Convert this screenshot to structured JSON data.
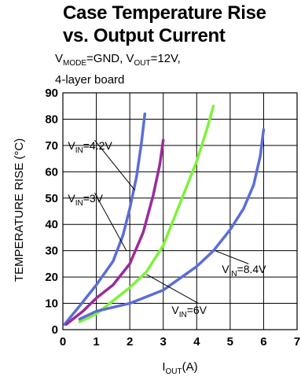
{
  "title_line1": "Case Temperature Rise",
  "title_line2": "vs. Output Current",
  "conditions": {
    "line1_a": "V",
    "line1_sub1": "MODE",
    "line1_b": "=GND, V",
    "line1_sub2": "OUT",
    "line1_c": "=12V,",
    "line2": "4-layer board"
  },
  "chart_data": {
    "type": "line",
    "xlabel_main": "I",
    "xlabel_sub": "OUT",
    "xlabel_unit": "(A)",
    "ylabel": "TEMPERATURE RISE (°C)",
    "xlim": [
      0,
      7
    ],
    "ylim": [
      0,
      90
    ],
    "xticks": [
      0,
      1,
      2,
      3,
      4,
      5,
      6,
      7
    ],
    "yticks": [
      0,
      10,
      20,
      30,
      40,
      50,
      60,
      70,
      80,
      90
    ],
    "grid": true,
    "series": [
      {
        "name": "VIN=4.2V",
        "label_main": "V",
        "label_sub": "IN",
        "label_value": "=4.2V",
        "color": "#5b6ed6",
        "points": [
          [
            0.05,
            2
          ],
          [
            0.5,
            9
          ],
          [
            1,
            17
          ],
          [
            1.5,
            26
          ],
          [
            1.8,
            36
          ],
          [
            2,
            46
          ],
          [
            2.2,
            58
          ],
          [
            2.35,
            71
          ],
          [
            2.45,
            82
          ]
        ]
      },
      {
        "name": "VIN=3V",
        "label_main": "V",
        "label_sub": "IN",
        "label_value": "=3V",
        "color": "#9b2b9b",
        "points": [
          [
            0.1,
            2
          ],
          [
            0.6,
            7
          ],
          [
            1,
            12
          ],
          [
            1.5,
            17
          ],
          [
            2,
            25
          ],
          [
            2.4,
            37
          ],
          [
            2.7,
            51
          ],
          [
            2.9,
            63
          ],
          [
            3,
            72
          ]
        ]
      },
      {
        "name": "VIN=6V",
        "label_main": "V",
        "label_sub": "IN",
        "label_value": "=6V",
        "color": "#7ef23a",
        "points": [
          [
            0.5,
            3
          ],
          [
            1,
            6
          ],
          [
            1.5,
            11
          ],
          [
            2,
            16
          ],
          [
            2.5,
            22
          ],
          [
            3,
            32
          ],
          [
            3.5,
            48
          ],
          [
            4,
            64
          ],
          [
            4.3,
            76
          ],
          [
            4.5,
            85
          ]
        ]
      },
      {
        "name": "VIN=8.4V",
        "label_main": "V",
        "label_sub": "IN",
        "label_value": "=8.4V",
        "color": "#5b6ed6",
        "points": [
          [
            0.5,
            4
          ],
          [
            1,
            7
          ],
          [
            2,
            10
          ],
          [
            3,
            15
          ],
          [
            4,
            24
          ],
          [
            4.5,
            30
          ],
          [
            5,
            38
          ],
          [
            5.4,
            46
          ],
          [
            5.7,
            55
          ],
          [
            5.9,
            66
          ],
          [
            6,
            76
          ]
        ]
      }
    ]
  }
}
